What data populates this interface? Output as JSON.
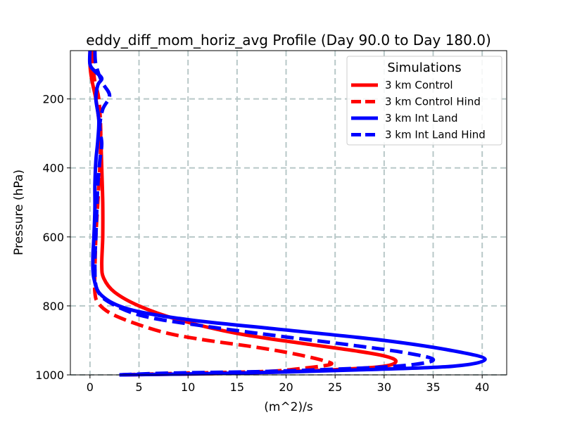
{
  "chart_data": {
    "type": "line",
    "title": "eddy_diff_mom_horiz_avg Profile (Day 90.0 to Day 180.0)",
    "xlabel": "(m^2)/s",
    "ylabel": "Pressure (hPa)",
    "xlim": [
      -2,
      42.5
    ],
    "ylim": [
      1000,
      60
    ],
    "y_inverted": true,
    "grid": true,
    "xticks": [
      0,
      5,
      10,
      15,
      20,
      25,
      30,
      35,
      40
    ],
    "yticks": [
      200,
      400,
      600,
      800,
      1000
    ],
    "legend": {
      "title": "Simulations",
      "position": "top-right",
      "labels": [
        "3 km Control",
        "3 km Control Hind",
        "3 km Int Land",
        "3 km Int Land Hind"
      ]
    },
    "series": [
      {
        "name": "3 km Control",
        "color": "#ff0000",
        "dash": "solid",
        "points": [
          [
            0,
            60
          ],
          [
            0,
            100
          ],
          [
            0.1,
            130
          ],
          [
            0.3,
            160
          ],
          [
            0.6,
            200
          ],
          [
            0.9,
            260
          ],
          [
            1.1,
            320
          ],
          [
            1.2,
            400
          ],
          [
            1.3,
            500
          ],
          [
            1.3,
            600
          ],
          [
            1.2,
            680
          ],
          [
            1.4,
            720
          ],
          [
            2.5,
            760
          ],
          [
            5,
            800
          ],
          [
            9,
            840
          ],
          [
            15,
            880
          ],
          [
            22,
            910
          ],
          [
            27,
            930
          ],
          [
            30,
            945
          ],
          [
            31.2,
            960
          ],
          [
            30,
            975
          ],
          [
            25,
            985
          ],
          [
            15,
            995
          ],
          [
            3,
            1000
          ]
        ]
      },
      {
        "name": "3 km Control Hind",
        "color": "#ff0000",
        "dash": "dashed",
        "points": [
          [
            0.2,
            60
          ],
          [
            0.3,
            100
          ],
          [
            0.5,
            150
          ],
          [
            0.9,
            200
          ],
          [
            1.1,
            300
          ],
          [
            1.0,
            400
          ],
          [
            0.8,
            500
          ],
          [
            0.6,
            600
          ],
          [
            0.5,
            700
          ],
          [
            0.5,
            760
          ],
          [
            0.8,
            790
          ],
          [
            2,
            820
          ],
          [
            4.5,
            850
          ],
          [
            8,
            880
          ],
          [
            12,
            900
          ],
          [
            17,
            920
          ],
          [
            21,
            940
          ],
          [
            24,
            960
          ],
          [
            24.5,
            970
          ],
          [
            22,
            980
          ],
          [
            18,
            990
          ],
          [
            10,
            995
          ],
          [
            3,
            1000
          ]
        ]
      },
      {
        "name": "3 km Int Land",
        "color": "#0000ff",
        "dash": "solid",
        "points": [
          [
            0,
            60
          ],
          [
            0,
            100
          ],
          [
            0.5,
            120
          ],
          [
            1.2,
            140
          ],
          [
            0.8,
            160
          ],
          [
            0.6,
            200
          ],
          [
            0.9,
            260
          ],
          [
            0.8,
            320
          ],
          [
            0.6,
            380
          ],
          [
            0.5,
            450
          ],
          [
            0.5,
            520
          ],
          [
            0.4,
            600
          ],
          [
            0.3,
            660
          ],
          [
            0.4,
            720
          ],
          [
            1.2,
            770
          ],
          [
            4,
            810
          ],
          [
            10,
            840
          ],
          [
            20,
            870
          ],
          [
            30,
            900
          ],
          [
            37,
            930
          ],
          [
            40.3,
            955
          ],
          [
            37,
            975
          ],
          [
            28,
            985
          ],
          [
            15,
            995
          ],
          [
            3,
            1000
          ]
        ]
      },
      {
        "name": "3 km Int Land Hind",
        "color": "#0000ff",
        "dash": "dashed",
        "points": [
          [
            0.5,
            60
          ],
          [
            0.6,
            100
          ],
          [
            1.2,
            150
          ],
          [
            2,
            190
          ],
          [
            1.3,
            230
          ],
          [
            1.0,
            280
          ],
          [
            1.2,
            330
          ],
          [
            1.0,
            380
          ],
          [
            0.8,
            450
          ],
          [
            0.7,
            520
          ],
          [
            0.6,
            600
          ],
          [
            0.5,
            680
          ],
          [
            0.7,
            750
          ],
          [
            2,
            790
          ],
          [
            5.5,
            830
          ],
          [
            12,
            860
          ],
          [
            20,
            890
          ],
          [
            27,
            915
          ],
          [
            32,
            935
          ],
          [
            35,
            955
          ],
          [
            33,
            970
          ],
          [
            28,
            980
          ],
          [
            18,
            990
          ],
          [
            8,
            995
          ],
          [
            3,
            1000
          ]
        ]
      }
    ]
  }
}
